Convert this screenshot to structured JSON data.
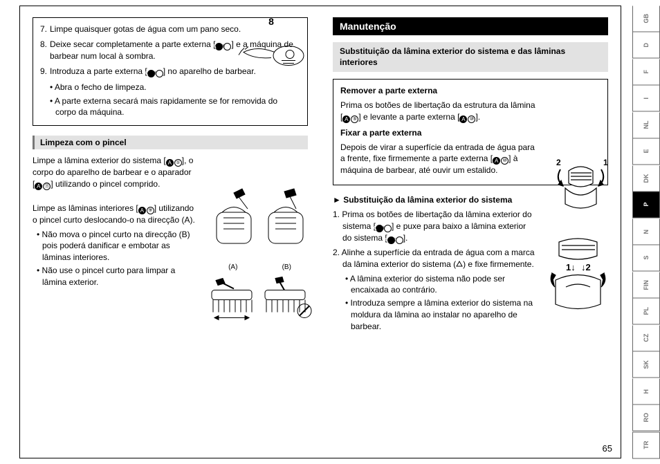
{
  "left": {
    "steps": [
      {
        "n": "7.",
        "t": "Limpe quaisquer gotas de água com um pano seco."
      },
      {
        "n": "8.",
        "t": "Deixe secar completamente a parte externa [",
        "ref": {
          "a": "A",
          "b": "⑩"
        },
        "t2": "] e a máquina de barbear num local à sombra."
      },
      {
        "n": "9.",
        "t": "Introduza a parte externa [",
        "ref": {
          "a": "A",
          "b": "⑩"
        },
        "t2": "] no aparelho de barbear."
      }
    ],
    "subs": [
      "• Abra o fecho de limpeza.",
      "• A parte externa secará mais rapidamente se for removida do corpo da máquina."
    ],
    "fig8": "8",
    "brush_heading": "Limpeza com o pincel",
    "brush_p1a": "Limpe a lâmina exterior do sistema [",
    "brush_r1": {
      "a": "A",
      "b": "①"
    },
    "brush_p1b": "], o corpo do aparelho de barbear e o aparador [",
    "brush_r2": {
      "a": "A",
      "b": "⑪"
    },
    "brush_p1c": "] utilizando o pincel comprido.",
    "brush_p2a": "Limpe as lâminas interiores [",
    "brush_r3": {
      "a": "A",
      "b": "⑨"
    },
    "brush_p2b": "] utilizando o pincel curto deslocando‑o na direcção (A).",
    "brush_bul1": "• Não mova o pincel curto na direcção (B) pois poderá danificar e embotar as lâminas interiores.",
    "brush_bul2": "• Não use o pincel curto para limpar a lâmina exterior.",
    "labA": "(A)",
    "labB": "(B)"
  },
  "right": {
    "main": "Manutenção",
    "sub": "Substituição da lâmina exterior do sistema e das lâminas interiores",
    "box_h1": "Remover a parte externa",
    "box_p1a": "Prima os botões de libertação da estrutura da lâmina [",
    "box_r1": {
      "a": "A",
      "b": "⑤"
    },
    "box_p1b": "] e levante a parte externa [",
    "box_r2": {
      "a": "A",
      "b": "⑩"
    },
    "box_p1c": "].",
    "box_h2": "Fixar a parte externa",
    "box_p2a": "Depois de virar a superfície da entrada de água para a frente, fixe firmemente a parte externa [",
    "box_r3": {
      "a": "A",
      "b": "⑩"
    },
    "box_p2b": "] à máquina de barbear, até ouvir um estalido.",
    "arrow_h": "► Substituição da lâmina exterior do sistema",
    "ol1a": "1. Prima os botões de libertação da lâmina exterior do sistema [",
    "ol1r": {
      "a": "A",
      "b": "⑧"
    },
    "ol1b": "] e puxe para baixo a lâmina exterior do sistema [",
    "ol1r2": {
      "a": "A",
      "b": "①"
    },
    "ol1c": "].",
    "ol2a": "2. Alinhe a superfície da entrada de água com a marca da lâmina exterior do sistema (",
    "ol2b": ") e fixe firmemente.",
    "bul1": "• A lâmina exterior do sistema não pode ser encaixada ao contrário.",
    "bul2": "• Introduza sempre a lâmina exterior do sistema na moldura da lâmina ao instalar no aparelho de barbear.",
    "fix1": "1",
    "fix2": "2",
    "repl1": "1",
    "repl2": "2"
  },
  "pageno": "65",
  "tabs": [
    "GB",
    "D",
    "F",
    "I",
    "NL",
    "E",
    "DK",
    "P",
    "N",
    "S",
    "FIN",
    "PL",
    "CZ",
    "SK",
    "H",
    "RO",
    "TR"
  ],
  "active_tab": "P",
  "colors": {
    "tab_active_bg": "#000000",
    "gray": "#e2e2e2"
  }
}
